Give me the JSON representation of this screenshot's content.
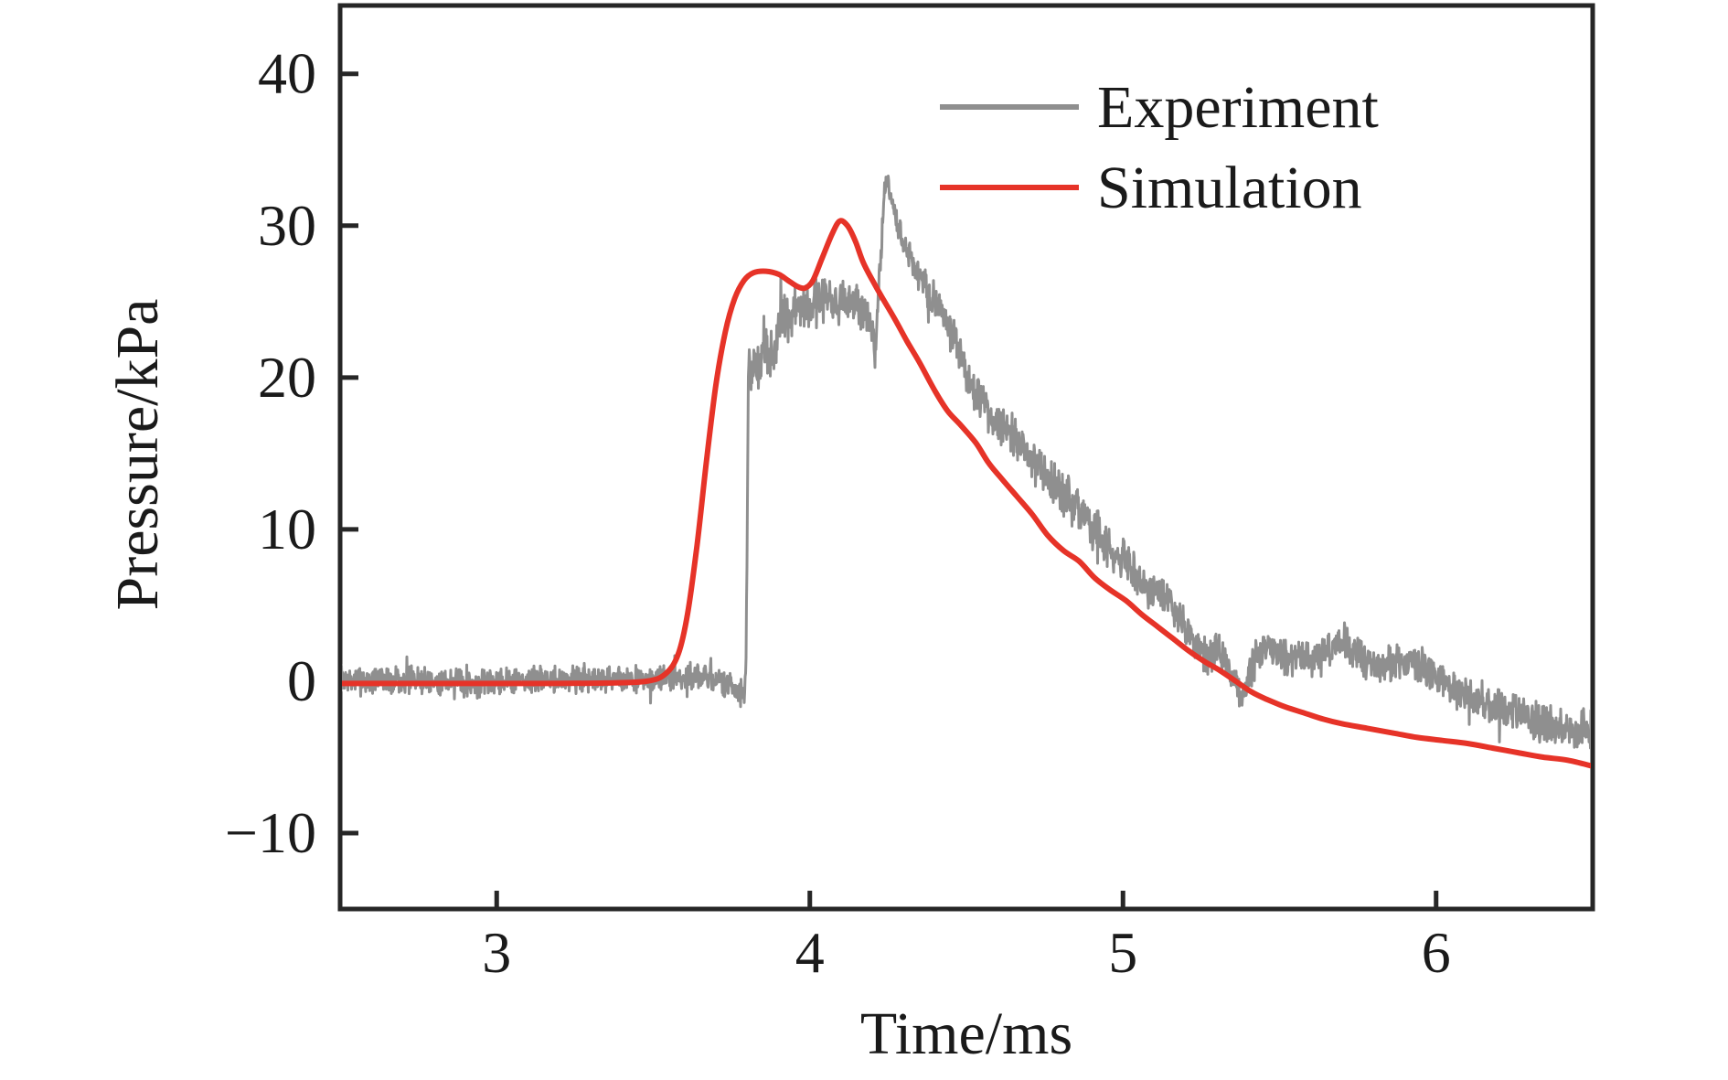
{
  "chart_data": {
    "type": "line",
    "title": "",
    "xlabel": "Time/ms",
    "ylabel": "Pressure/kPa",
    "xlim": [
      2.5,
      6.5
    ],
    "ylim": [
      -15,
      44.5
    ],
    "xticks": [
      3,
      4,
      5,
      6
    ],
    "xtick_labels": [
      "3",
      "4",
      "5",
      "6"
    ],
    "yticks": [
      -10,
      0,
      10,
      20,
      30,
      40
    ],
    "ytick_labels": [
      "−10",
      "0",
      "10",
      "20",
      "30",
      "40"
    ],
    "grid": false,
    "legend_position": "upper-right-inside",
    "axis_color": "#262626",
    "text_color": "#1a1a1a",
    "series": [
      {
        "name": "Experiment",
        "color": "#8f8f8f",
        "style": "noisy-line",
        "line_width": 3,
        "noise_seed": 7,
        "noise_amplitude_kpa": [
          [
            2.5,
            0.85
          ],
          [
            3.78,
            0.85
          ],
          [
            3.81,
            1.3
          ],
          [
            3.84,
            1.9
          ],
          [
            3.95,
            1.7
          ],
          [
            4.05,
            1.5
          ],
          [
            4.18,
            1.4
          ],
          [
            4.21,
            1.0
          ],
          [
            4.26,
            0.7
          ],
          [
            4.32,
            0.9
          ],
          [
            4.42,
            1.2
          ],
          [
            4.6,
            1.3
          ],
          [
            5.0,
            1.25
          ],
          [
            5.3,
            1.1
          ],
          [
            5.6,
            1.1
          ],
          [
            6.0,
            1.15
          ],
          [
            6.5,
            1.25
          ]
        ],
        "keypoints": [
          [
            2.5,
            0.0
          ],
          [
            2.7,
            0.1
          ],
          [
            2.9,
            -0.1
          ],
          [
            3.1,
            0.1
          ],
          [
            3.3,
            0.2
          ],
          [
            3.5,
            0.1
          ],
          [
            3.62,
            0.3
          ],
          [
            3.7,
            0.1
          ],
          [
            3.755,
            -0.3
          ],
          [
            3.775,
            -0.7
          ],
          [
            3.79,
            -0.9
          ],
          [
            3.796,
            1.0
          ],
          [
            3.8,
            10.0
          ],
          [
            3.804,
            20.8
          ],
          [
            3.83,
            20.3
          ],
          [
            3.85,
            22.0
          ],
          [
            3.87,
            20.8
          ],
          [
            3.9,
            23.2
          ],
          [
            3.93,
            23.8
          ],
          [
            3.96,
            24.4
          ],
          [
            4.0,
            24.6
          ],
          [
            4.03,
            25.0
          ],
          [
            4.06,
            25.3
          ],
          [
            4.09,
            24.8
          ],
          [
            4.12,
            25.0
          ],
          [
            4.15,
            24.9
          ],
          [
            4.18,
            24.2
          ],
          [
            4.195,
            23.6
          ],
          [
            4.203,
            22.2
          ],
          [
            4.208,
            21.3
          ],
          [
            4.213,
            23.0
          ],
          [
            4.222,
            26.5
          ],
          [
            4.232,
            30.0
          ],
          [
            4.24,
            32.3
          ],
          [
            4.246,
            33.1
          ],
          [
            4.252,
            32.6
          ],
          [
            4.26,
            31.6
          ],
          [
            4.27,
            30.7
          ],
          [
            4.285,
            29.8
          ],
          [
            4.3,
            28.9
          ],
          [
            4.32,
            27.9
          ],
          [
            4.34,
            27.1
          ],
          [
            4.37,
            25.9
          ],
          [
            4.4,
            24.9
          ],
          [
            4.43,
            24.0
          ],
          [
            4.47,
            22.0
          ],
          [
            4.51,
            19.6
          ],
          [
            4.55,
            18.2
          ],
          [
            4.59,
            17.2
          ],
          [
            4.63,
            16.8
          ],
          [
            4.67,
            15.5
          ],
          [
            4.71,
            14.4
          ],
          [
            4.75,
            13.6
          ],
          [
            4.8,
            12.4
          ],
          [
            4.86,
            11.2
          ],
          [
            4.91,
            9.8
          ],
          [
            4.96,
            8.6
          ],
          [
            5.01,
            7.8
          ],
          [
            5.06,
            6.6
          ],
          [
            5.11,
            5.8
          ],
          [
            5.15,
            5.2
          ],
          [
            5.19,
            4.0
          ],
          [
            5.23,
            2.6
          ],
          [
            5.265,
            1.4
          ],
          [
            5.3,
            2.2
          ],
          [
            5.33,
            1.2
          ],
          [
            5.365,
            -0.6
          ],
          [
            5.385,
            -0.9
          ],
          [
            5.41,
            0.8
          ],
          [
            5.44,
            2.1
          ],
          [
            5.47,
            2.2
          ],
          [
            5.5,
            1.8
          ],
          [
            5.53,
            1.6
          ],
          [
            5.56,
            1.4
          ],
          [
            5.59,
            1.3
          ],
          [
            5.63,
            1.5
          ],
          [
            5.66,
            2.3
          ],
          [
            5.695,
            2.7
          ],
          [
            5.73,
            2.2
          ],
          [
            5.77,
            1.4
          ],
          [
            5.81,
            1.0
          ],
          [
            5.85,
            1.1
          ],
          [
            5.89,
            1.3
          ],
          [
            5.925,
            1.6
          ],
          [
            5.96,
            0.8
          ],
          [
            6.0,
            0.2
          ],
          [
            6.04,
            -0.3
          ],
          [
            6.08,
            -0.8
          ],
          [
            6.12,
            -1.0
          ],
          [
            6.16,
            -1.4
          ],
          [
            6.2,
            -1.8
          ],
          [
            6.25,
            -2.1
          ],
          [
            6.3,
            -2.5
          ],
          [
            6.35,
            -2.8
          ],
          [
            6.4,
            -3.1
          ],
          [
            6.45,
            -3.2
          ],
          [
            6.5,
            -3.0
          ]
        ]
      },
      {
        "name": "Simulation",
        "color": "#e63328",
        "style": "smooth-line",
        "line_width": 6,
        "points": [
          [
            2.5,
            -0.15
          ],
          [
            2.8,
            -0.15
          ],
          [
            3.1,
            -0.15
          ],
          [
            3.35,
            -0.12
          ],
          [
            3.48,
            0.0
          ],
          [
            3.54,
            0.5
          ],
          [
            3.58,
            1.8
          ],
          [
            3.61,
            4.5
          ],
          [
            3.64,
            9.0
          ],
          [
            3.67,
            14.5
          ],
          [
            3.7,
            19.5
          ],
          [
            3.73,
            23.0
          ],
          [
            3.76,
            25.2
          ],
          [
            3.79,
            26.4
          ],
          [
            3.82,
            26.9
          ],
          [
            3.86,
            27.0
          ],
          [
            3.9,
            26.8
          ],
          [
            3.93,
            26.4
          ],
          [
            3.96,
            26.0
          ],
          [
            3.985,
            25.9
          ],
          [
            4.01,
            26.4
          ],
          [
            4.04,
            27.9
          ],
          [
            4.07,
            29.4
          ],
          [
            4.095,
            30.3
          ],
          [
            4.12,
            30.0
          ],
          [
            4.145,
            29.0
          ],
          [
            4.17,
            27.6
          ],
          [
            4.2,
            26.4
          ],
          [
            4.23,
            25.3
          ],
          [
            4.27,
            23.9
          ],
          [
            4.31,
            22.4
          ],
          [
            4.35,
            21.0
          ],
          [
            4.4,
            19.1
          ],
          [
            4.44,
            17.8
          ],
          [
            4.48,
            16.9
          ],
          [
            4.53,
            15.7
          ],
          [
            4.57,
            14.4
          ],
          [
            4.61,
            13.4
          ],
          [
            4.66,
            12.2
          ],
          [
            4.71,
            11.0
          ],
          [
            4.76,
            9.6
          ],
          [
            4.81,
            8.6
          ],
          [
            4.86,
            7.9
          ],
          [
            4.91,
            6.8
          ],
          [
            4.96,
            6.0
          ],
          [
            5.01,
            5.3
          ],
          [
            5.06,
            4.4
          ],
          [
            5.11,
            3.6
          ],
          [
            5.16,
            2.8
          ],
          [
            5.21,
            2.0
          ],
          [
            5.26,
            1.3
          ],
          [
            5.31,
            0.7
          ],
          [
            5.36,
            0.0
          ],
          [
            5.41,
            -0.7
          ],
          [
            5.46,
            -1.2
          ],
          [
            5.52,
            -1.7
          ],
          [
            5.58,
            -2.1
          ],
          [
            5.64,
            -2.5
          ],
          [
            5.7,
            -2.8
          ],
          [
            5.78,
            -3.1
          ],
          [
            5.86,
            -3.4
          ],
          [
            5.94,
            -3.7
          ],
          [
            6.02,
            -3.9
          ],
          [
            6.1,
            -4.1
          ],
          [
            6.18,
            -4.4
          ],
          [
            6.26,
            -4.7
          ],
          [
            6.34,
            -5.0
          ],
          [
            6.42,
            -5.2
          ],
          [
            6.5,
            -5.6
          ]
        ]
      }
    ]
  }
}
